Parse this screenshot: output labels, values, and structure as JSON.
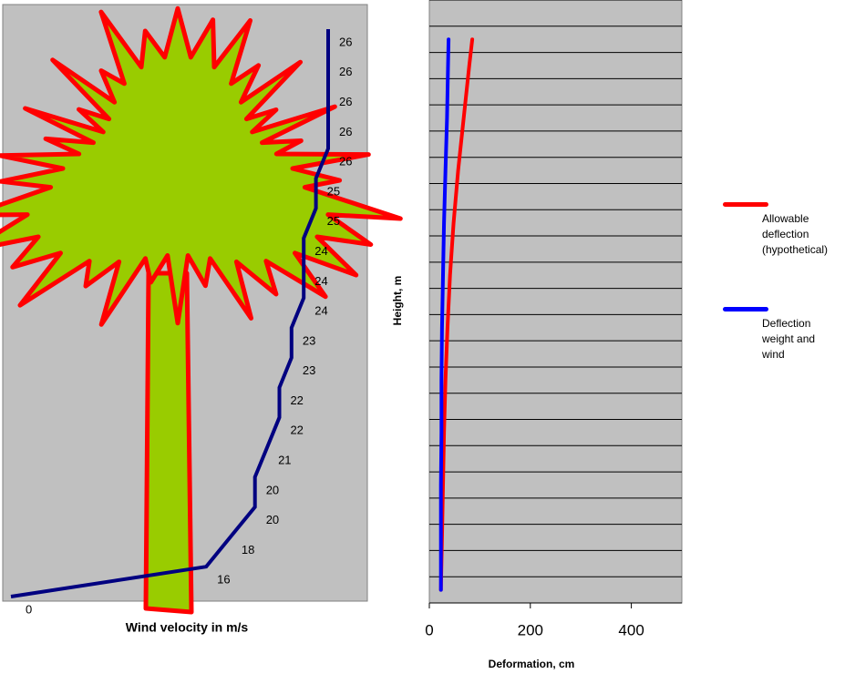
{
  "chart_data": [
    {
      "type": "wind-profile",
      "x_label": "Wind velocity in m/s",
      "color": "#000080",
      "values": [
        0,
        16,
        18,
        20,
        20,
        21,
        22,
        22,
        23,
        23,
        24,
        24,
        24,
        25,
        25,
        26,
        26,
        26,
        26,
        26
      ]
    },
    {
      "type": "line",
      "orientation": "horizontal",
      "x_label": "Deformation, cm",
      "y_label": "Height, m",
      "x": [
        0.5,
        2.5,
        4.5,
        6.5,
        8.5,
        10.5,
        12.5,
        14.5,
        16.5,
        18.5,
        20.5,
        21.5
      ],
      "series": [
        {
          "name": "Allowable deflection (hypothetical)",
          "color": "#ff0000",
          "values": [
            23,
            25,
            27,
            29,
            32,
            36,
            41,
            48,
            57,
            68,
            79,
            85
          ]
        },
        {
          "name": "Deflection weight and wind",
          "color": "#0000ff",
          "values": [
            23,
            23,
            23,
            24,
            24,
            25,
            27,
            29,
            32,
            35,
            37,
            38
          ]
        }
      ],
      "xlim": [
        0,
        500
      ],
      "xticks": [
        0,
        200,
        400
      ],
      "ylim": [
        0,
        23
      ],
      "yticks": [
        0,
        1,
        2,
        3,
        4,
        5,
        6,
        7,
        8,
        9,
        10,
        11,
        12,
        13,
        14,
        15,
        16,
        17,
        18,
        19,
        20,
        21,
        22,
        23
      ],
      "grid": true,
      "legend": "right"
    }
  ]
}
